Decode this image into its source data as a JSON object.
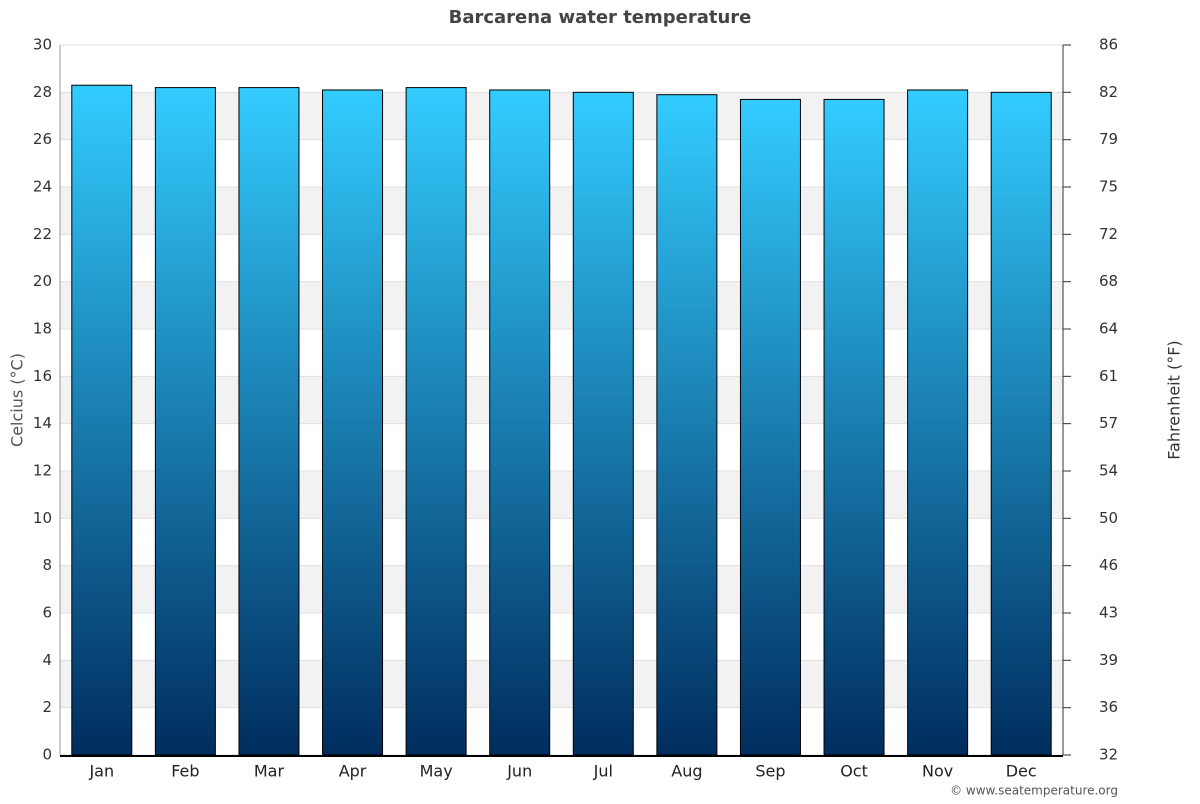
{
  "chart_data": {
    "type": "bar",
    "title": "Barcarena water temperature",
    "y_label": "Celcius (°C)",
    "y2_label": "Fahrenheit (°F)",
    "categories": [
      "Jan",
      "Feb",
      "Mar",
      "Apr",
      "May",
      "Jun",
      "Jul",
      "Aug",
      "Sep",
      "Oct",
      "Nov",
      "Dec"
    ],
    "values": [
      28.3,
      28.2,
      28.2,
      28.1,
      28.2,
      28.1,
      28.0,
      27.9,
      27.7,
      27.7,
      28.1,
      28.0
    ],
    "gradient": [
      "#33ccff",
      "#002d5e"
    ],
    "ylim": [
      0,
      30
    ],
    "yticks": [
      0,
      2,
      4,
      6,
      8,
      10,
      12,
      14,
      16,
      18,
      20,
      22,
      24,
      26,
      28,
      30
    ],
    "y2lim": [
      32,
      86
    ],
    "y2ticks": [
      32,
      {
        "value": 35.6,
        "label": "36"
      },
      {
        "value": 39.2,
        "label": "39"
      },
      {
        "value": 42.8,
        "label": "43"
      },
      {
        "value": 46.4,
        "label": "46"
      },
      50,
      {
        "value": 53.6,
        "label": "54"
      },
      {
        "value": 57.2,
        "label": "57"
      },
      {
        "value": 60.8,
        "label": "61"
      },
      {
        "value": 64.4,
        "label": "64"
      },
      68,
      {
        "value": 71.6,
        "label": "72"
      },
      {
        "value": 75.2,
        "label": "75"
      },
      {
        "value": 78.8,
        "label": "79"
      },
      {
        "value": 82.4,
        "label": "82"
      },
      86
    ],
    "grid": true,
    "credit": "© www.seatemperature.org"
  }
}
